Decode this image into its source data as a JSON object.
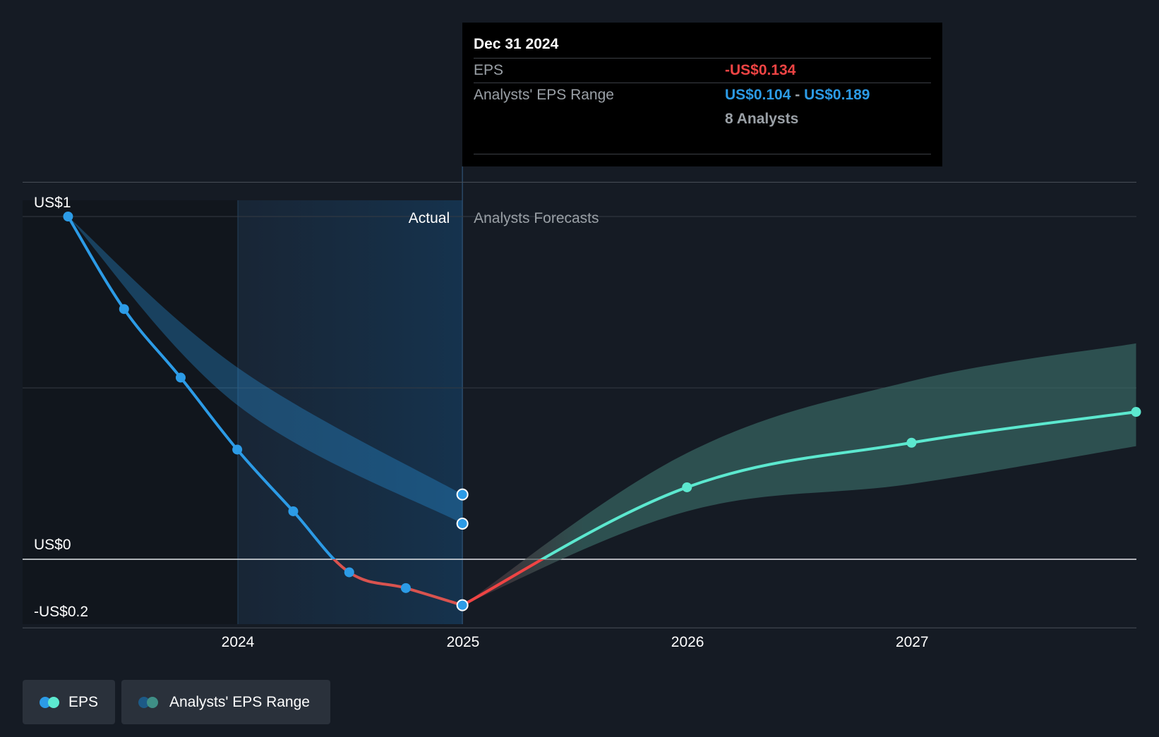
{
  "chart_data": {
    "type": "line",
    "x_ticks": [
      "2024",
      "2025",
      "2026",
      "2027"
    ],
    "y_labels": [
      "US$1",
      "US$0",
      "-US$0.2"
    ],
    "section_labels": {
      "actual": "Actual",
      "forecast": "Analysts Forecasts"
    },
    "series": [
      {
        "name": "EPS",
        "points": [
          {
            "x": "2023-03-31",
            "y": 1.0
          },
          {
            "x": "2023-06-30",
            "y": 0.73
          },
          {
            "x": "2023-09-30",
            "y": 0.53
          },
          {
            "x": "2023-12-31",
            "y": 0.32
          },
          {
            "x": "2024-03-31",
            "y": 0.14
          },
          {
            "x": "2024-06-30",
            "y": -0.038
          },
          {
            "x": "2024-09-30",
            "y": -0.084
          },
          {
            "x": "2024-12-31",
            "y": -0.134
          }
        ]
      },
      {
        "name": "EPS forecast",
        "points": [
          {
            "x": "2024-12-31",
            "y": -0.134
          },
          {
            "x": "2025-12-31",
            "y": 0.21
          },
          {
            "x": "2026-12-31",
            "y": 0.34
          },
          {
            "x": "2027-12-31",
            "y": 0.43
          }
        ]
      },
      {
        "name": "Analysts' EPS Range",
        "actual_range": [
          {
            "x": "2023-03-31",
            "low": 1.0,
            "high": 1.0
          },
          {
            "x": "2023-12-31",
            "low": 0.45,
            "high": 0.56
          },
          {
            "x": "2024-12-31",
            "low": 0.104,
            "high": 0.189
          }
        ],
        "forecast_range": [
          {
            "x": "2024-12-31",
            "low": -0.134,
            "high": -0.134
          },
          {
            "x": "2025-12-31",
            "low": 0.14,
            "high": 0.31
          },
          {
            "x": "2026-12-31",
            "low": 0.22,
            "high": 0.52
          },
          {
            "x": "2027-12-31",
            "low": 0.33,
            "high": 0.63
          }
        ]
      }
    ],
    "ylim": [
      -0.2,
      1.1
    ],
    "colors": {
      "eps_actual": "#2c9be6",
      "eps_negative": "#ef4444",
      "eps_forecast": "#5ce8cf",
      "range_actual": "#2c9be6",
      "range_forecast": "#3b6e69"
    }
  },
  "tooltip": {
    "date": "Dec 31 2024",
    "eps_label": "EPS",
    "eps_value": "-US$0.134",
    "range_label": "Analysts' EPS Range",
    "range_low": "US$0.104",
    "range_sep": " - ",
    "range_high": "US$0.189",
    "analysts": "8 Analysts"
  },
  "legend": {
    "eps": "EPS",
    "range": "Analysts' EPS Range"
  }
}
